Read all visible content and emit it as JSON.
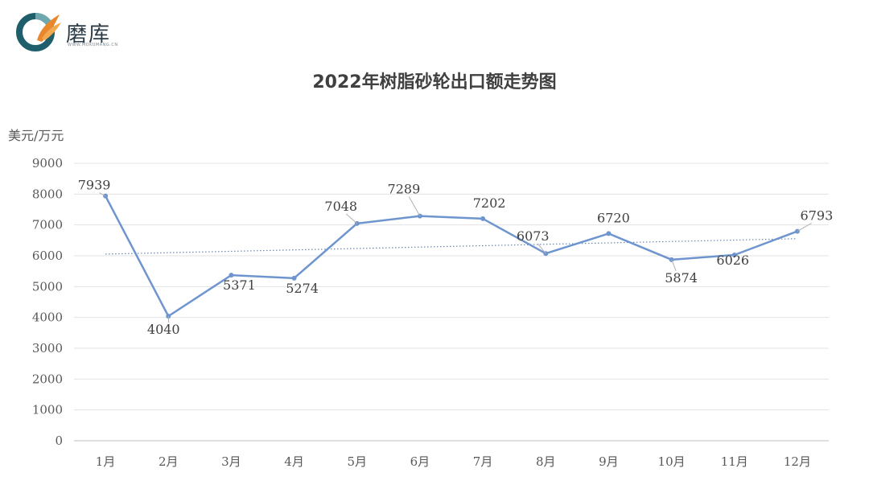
{
  "brand": {
    "name": "磨库",
    "subtitle": "WWW.MOKUMANG.CN",
    "colors": {
      "ring_dark": "#1f5f6b",
      "ring_light": "#6fa7ae",
      "flame": "#e8872c"
    }
  },
  "chart_data": {
    "type": "line",
    "title": "2022年树脂砂轮出口额走势图",
    "ylabel": "美元/万元",
    "xlabel": "",
    "categories": [
      "1月",
      "2月",
      "3月",
      "4月",
      "5月",
      "6月",
      "7月",
      "8月",
      "9月",
      "10月",
      "11月",
      "12月"
    ],
    "series": [
      {
        "values": [
          7939,
          4040,
          5371,
          5274,
          7048,
          7289,
          7202,
          6073,
          6720,
          5874,
          6026,
          6793
        ],
        "color": "#6e95cf"
      }
    ],
    "trendline": {
      "type": "linear",
      "style": "dotted",
      "color": "#5b86c5"
    },
    "ylim": [
      0,
      9000
    ],
    "yticks": [
      0,
      1000,
      2000,
      3000,
      4000,
      5000,
      6000,
      7000,
      8000,
      9000
    ],
    "grid": true,
    "legend": "none",
    "data_labels": true
  }
}
